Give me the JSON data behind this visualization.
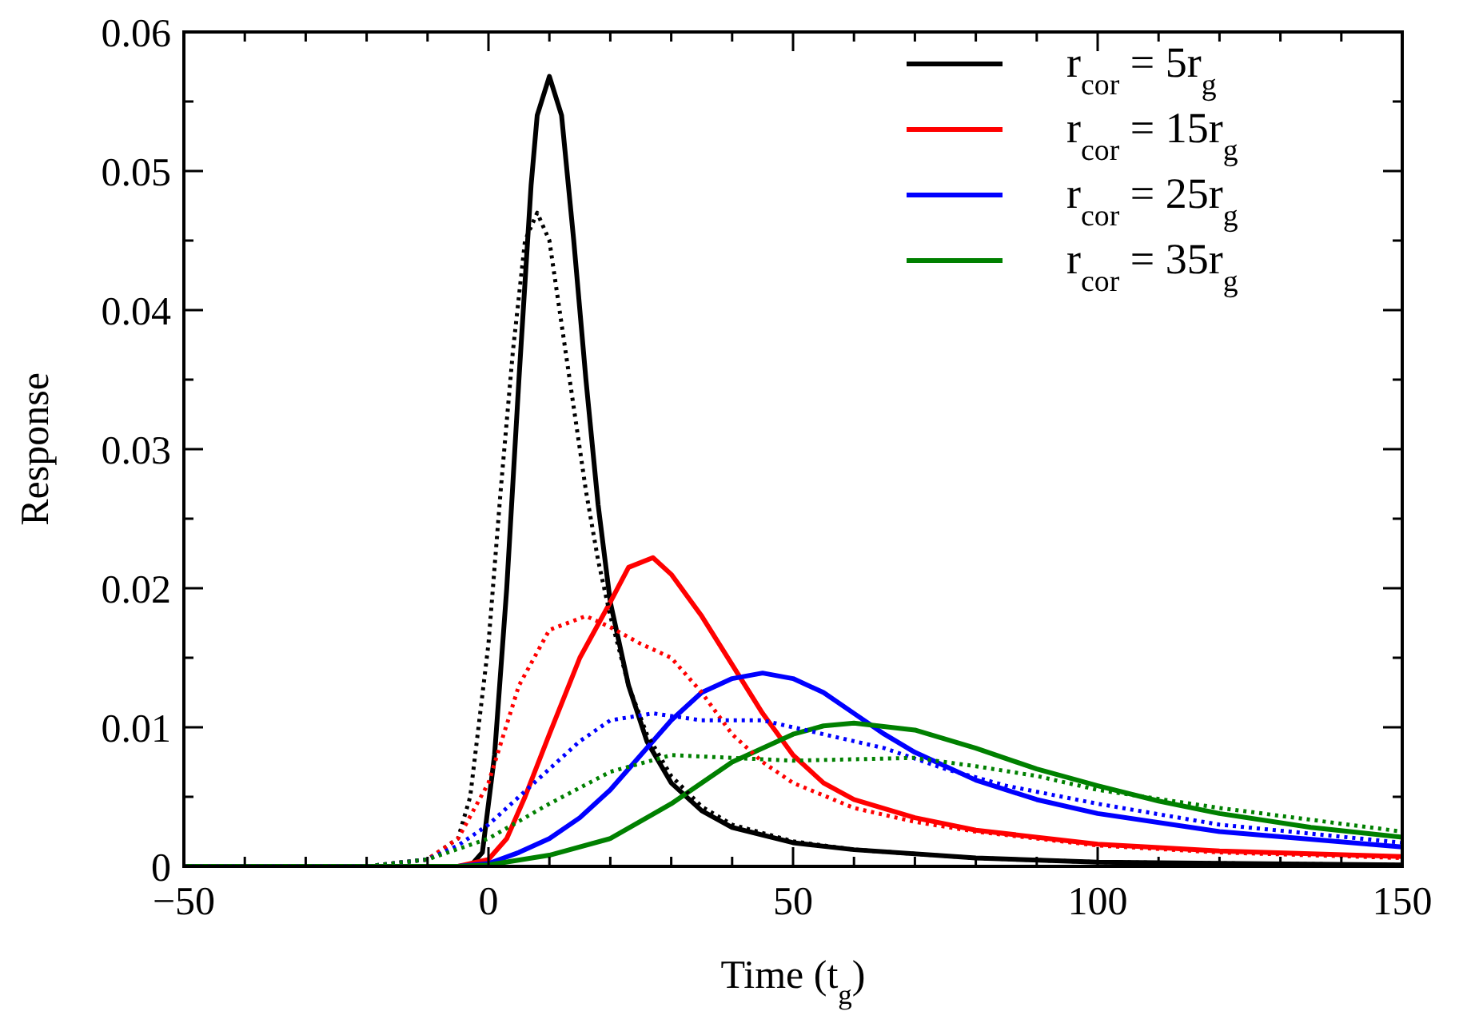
{
  "chart_data": {
    "type": "line",
    "xlabel": "Time (t$_{g}$)",
    "ylabel": "Response",
    "xlim": [
      -50,
      150
    ],
    "ylim": [
      0,
      0.06
    ],
    "xticks": [
      -50,
      {
        "value": -40,
        "label": null
      },
      {
        "value": -30,
        "label": null
      },
      {
        "value": -20,
        "label": null
      },
      {
        "value": -10,
        "label": null
      },
      0,
      {
        "value": 10,
        "label": null
      },
      {
        "value": 20,
        "label": null
      },
      {
        "value": 30,
        "label": null
      },
      {
        "value": 40,
        "label": null
      },
      50,
      {
        "value": 60,
        "label": null
      },
      {
        "value": 70,
        "label": null
      },
      {
        "value": 80,
        "label": null
      },
      {
        "value": 90,
        "label": null
      },
      100,
      {
        "value": 110,
        "label": null
      },
      {
        "value": 120,
        "label": null
      },
      {
        "value": 130,
        "label": null
      },
      {
        "value": 140,
        "label": null
      },
      150
    ],
    "yticks": [
      0,
      {
        "value": 0.005,
        "label": null
      },
      0.01,
      {
        "value": 0.015,
        "label": null
      },
      0.02,
      {
        "value": 0.025,
        "label": null
      },
      0.03,
      {
        "value": 0.035,
        "label": null
      },
      0.04,
      {
        "value": 0.045,
        "label": null
      },
      0.05,
      {
        "value": 0.055,
        "label": null
      },
      0.06
    ],
    "grid": false,
    "legend": "top right",
    "series": [
      {
        "name": "r$_{cor}$ = 5r$_{g}$",
        "color": "#000000",
        "line_style": "solid",
        "x": [
          -50,
          -3,
          -1,
          1,
          3,
          5,
          7,
          8,
          10,
          12,
          14,
          16,
          18,
          20,
          23,
          26,
          30,
          35,
          40,
          50,
          60,
          80,
          100,
          150
        ],
        "values": [
          0,
          0,
          0.001,
          0.008,
          0.02,
          0.035,
          0.049,
          0.054,
          0.0568,
          0.054,
          0.045,
          0.035,
          0.026,
          0.019,
          0.013,
          0.009,
          0.006,
          0.004,
          0.0028,
          0.0017,
          0.0012,
          0.0006,
          0.0003,
          0.0001
        ]
      },
      {
        "name": "r$_{cor}$ = 15r$_{g}$",
        "color": "#ff0000",
        "line_style": "solid",
        "x": [
          -50,
          -5,
          0,
          3,
          6,
          10,
          15,
          20,
          23,
          27,
          30,
          35,
          40,
          45,
          50,
          55,
          60,
          70,
          80,
          100,
          120,
          150
        ],
        "values": [
          0,
          0,
          0.0005,
          0.002,
          0.005,
          0.0095,
          0.015,
          0.019,
          0.0215,
          0.0222,
          0.021,
          0.018,
          0.0145,
          0.011,
          0.008,
          0.006,
          0.0048,
          0.0035,
          0.0026,
          0.0016,
          0.0011,
          0.0007
        ]
      },
      {
        "name": "r$_{cor}$ = 25r$_{g}$",
        "color": "#0000ff",
        "line_style": "solid",
        "x": [
          -50,
          -5,
          0,
          5,
          10,
          15,
          20,
          25,
          30,
          35,
          40,
          45,
          50,
          55,
          60,
          65,
          70,
          80,
          90,
          100,
          120,
          150
        ],
        "values": [
          0,
          0,
          0.0002,
          0.001,
          0.002,
          0.0035,
          0.0055,
          0.008,
          0.0105,
          0.0125,
          0.0135,
          0.0139,
          0.0135,
          0.0125,
          0.011,
          0.0095,
          0.0082,
          0.0062,
          0.0048,
          0.0038,
          0.0025,
          0.0014
        ]
      },
      {
        "name": "r$_{cor}$ = 35r$_{g}$",
        "color": "#008000",
        "line_style": "solid",
        "x": [
          -50,
          -5,
          0,
          10,
          20,
          30,
          40,
          50,
          55,
          60,
          70,
          80,
          90,
          100,
          110,
          120,
          135,
          150
        ],
        "values": [
          0,
          0,
          0.0001,
          0.0008,
          0.002,
          0.0045,
          0.0075,
          0.0095,
          0.0101,
          0.0103,
          0.0098,
          0.0085,
          0.007,
          0.0058,
          0.0047,
          0.0038,
          0.0028,
          0.0021
        ]
      },
      {
        "color": "#000000",
        "line_style": "dotted",
        "x": [
          -50,
          -20,
          -10,
          -5,
          -3,
          0,
          2,
          4,
          6,
          8,
          10,
          12,
          14,
          16,
          18,
          20,
          23,
          26,
          30,
          35,
          40,
          50,
          60,
          80,
          100,
          150
        ],
        "values": [
          0,
          0,
          0.0005,
          0.002,
          0.005,
          0.016,
          0.027,
          0.037,
          0.045,
          0.047,
          0.045,
          0.039,
          0.033,
          0.027,
          0.022,
          0.018,
          0.013,
          0.0095,
          0.0065,
          0.0043,
          0.003,
          0.0018,
          0.0012,
          0.0006,
          0.0003,
          0.0001
        ]
      },
      {
        "color": "#ff0000",
        "line_style": "dotted",
        "x": [
          -50,
          -20,
          -10,
          -5,
          0,
          5,
          10,
          16,
          20,
          25,
          30,
          35,
          40,
          45,
          50,
          60,
          70,
          80,
          100,
          120,
          150
        ],
        "values": [
          0,
          0,
          0.0005,
          0.002,
          0.006,
          0.013,
          0.017,
          0.018,
          0.0172,
          0.016,
          0.015,
          0.0125,
          0.0095,
          0.0075,
          0.006,
          0.0042,
          0.0032,
          0.0025,
          0.0015,
          0.001,
          0.0006
        ]
      },
      {
        "color": "#0000ff",
        "line_style": "dotted",
        "x": [
          -50,
          -20,
          -10,
          -5,
          0,
          5,
          10,
          15,
          20,
          27,
          35,
          45,
          55,
          65,
          75,
          85,
          100,
          120,
          150
        ],
        "values": [
          0,
          0,
          0.0005,
          0.0015,
          0.003,
          0.005,
          0.007,
          0.009,
          0.0105,
          0.011,
          0.0105,
          0.0105,
          0.0095,
          0.0085,
          0.007,
          0.0058,
          0.0045,
          0.003,
          0.0017
        ]
      },
      {
        "color": "#008000",
        "line_style": "dotted",
        "x": [
          -50,
          -20,
          -10,
          0,
          10,
          20,
          30,
          40,
          50,
          60,
          70,
          80,
          90,
          100,
          120,
          150
        ],
        "values": [
          0,
          0,
          0.0005,
          0.002,
          0.0045,
          0.0068,
          0.008,
          0.0078,
          0.0076,
          0.0077,
          0.0078,
          0.0072,
          0.0065,
          0.0055,
          0.0042,
          0.0025
        ]
      }
    ]
  }
}
